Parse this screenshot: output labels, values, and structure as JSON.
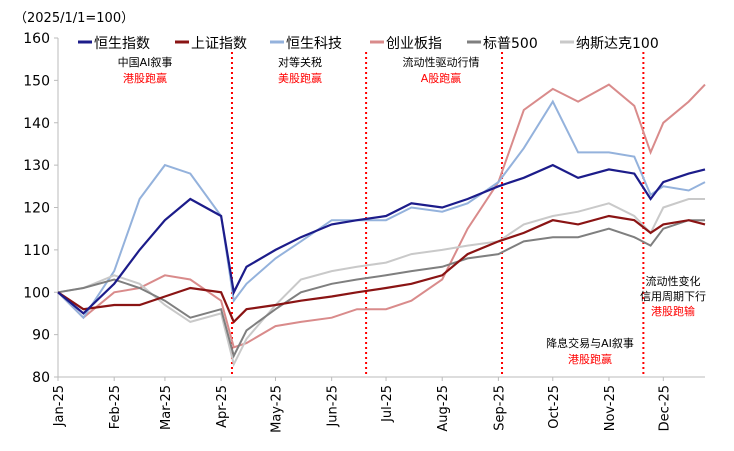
{
  "chart_data": {
    "type": "line",
    "unit_label": "（2025/1/1=100）",
    "ylim": [
      80,
      160
    ],
    "yticks": [
      80,
      90,
      100,
      110,
      120,
      130,
      140,
      150,
      160
    ],
    "xticks": [
      "Jan-25",
      "Feb-25",
      "Mar-25",
      "Apr-25",
      "May-25",
      "Jun-25",
      "Jul-25",
      "Aug-25",
      "Sep-25",
      "Oct-25",
      "Nov-25",
      "Dec-25"
    ],
    "xtick_dates": [
      "2025-01-01",
      "2025-02-01",
      "2025-03-01",
      "2025-04-01",
      "2025-05-01",
      "2025-06-01",
      "2025-07-01",
      "2025-08-01",
      "2025-09-01",
      "2025-10-01",
      "2025-11-01",
      "2025-12-01"
    ],
    "xlim": [
      "2025-01-01",
      "2025-12-24"
    ],
    "grid": false,
    "legend_position": "top",
    "x": [
      "2025-01-01",
      "2025-01-15",
      "2025-02-01",
      "2025-02-15",
      "2025-03-01",
      "2025-03-15",
      "2025-04-01",
      "2025-04-08",
      "2025-04-15",
      "2025-05-01",
      "2025-05-15",
      "2025-06-01",
      "2025-06-15",
      "2025-07-01",
      "2025-07-15",
      "2025-08-01",
      "2025-08-15",
      "2025-09-01",
      "2025-09-15",
      "2025-10-01",
      "2025-10-15",
      "2025-11-01",
      "2025-11-15",
      "2025-11-24",
      "2025-12-01",
      "2025-12-15",
      "2025-12-24"
    ],
    "series": [
      {
        "name": "恒生指数",
        "color": "#1c1c8a",
        "values": [
          100,
          95,
          102,
          110,
          117,
          122,
          118,
          100,
          106,
          110,
          113,
          116,
          117,
          118,
          121,
          120,
          122,
          125,
          127,
          130,
          127,
          129,
          128,
          122,
          126,
          128,
          129
        ]
      },
      {
        "name": "上证指数",
        "color": "#8a1414",
        "values": [
          100,
          96,
          97,
          97,
          99,
          101,
          100,
          93,
          96,
          97,
          98,
          99,
          100,
          101,
          102,
          104,
          109,
          112,
          114,
          117,
          116,
          118,
          117,
          114,
          116,
          117,
          116
        ]
      },
      {
        "name": "恒生科技",
        "color": "#94b2dc",
        "values": [
          100,
          94,
          105,
          122,
          130,
          128,
          118,
          98,
          102,
          108,
          112,
          117,
          117,
          117,
          120,
          119,
          121,
          126,
          134,
          145,
          133,
          133,
          132,
          123,
          125,
          124,
          126
        ]
      },
      {
        "name": "创业板指",
        "color": "#d98b8b",
        "values": [
          100,
          94,
          100,
          101,
          104,
          103,
          98,
          87,
          88,
          92,
          93,
          94,
          96,
          96,
          98,
          103,
          115,
          126,
          143,
          148,
          145,
          149,
          144,
          133,
          140,
          145,
          149
        ]
      },
      {
        "name": "标普500",
        "color": "#7f7f7f",
        "values": [
          100,
          101,
          103,
          101,
          98,
          94,
          96,
          85,
          91,
          96,
          100,
          102,
          103,
          104,
          105,
          106,
          108,
          109,
          112,
          113,
          113,
          115,
          113,
          111,
          115,
          117,
          117
        ]
      },
      {
        "name": "纳斯达克100",
        "color": "#c9c9c9",
        "values": [
          100,
          101,
          104,
          102,
          97,
          93,
          95,
          83,
          89,
          97,
          103,
          105,
          106,
          107,
          109,
          110,
          111,
          112,
          116,
          118,
          119,
          121,
          118,
          114,
          120,
          122,
          122
        ]
      }
    ],
    "dividers": [
      "2025-04-07",
      "2025-06-20",
      "2025-09-03",
      "2025-11-20"
    ],
    "annotations": [
      {
        "line1": "中国AI叙事",
        "line2": "港股跑赢"
      },
      {
        "line1": "对等关税",
        "line2": "美股跑赢"
      },
      {
        "line1": "流动性驱动行情",
        "line2": "A股跑赢"
      },
      {
        "line1": "降息交易与AI叙事",
        "line2": "港股跑赢"
      },
      {
        "line1": "流动性变化",
        "line1b": "信用周期下行",
        "line2": "港股跑输"
      }
    ],
    "divider_color": "#ff0000",
    "annotation_highlight_color": "#ff0000"
  }
}
